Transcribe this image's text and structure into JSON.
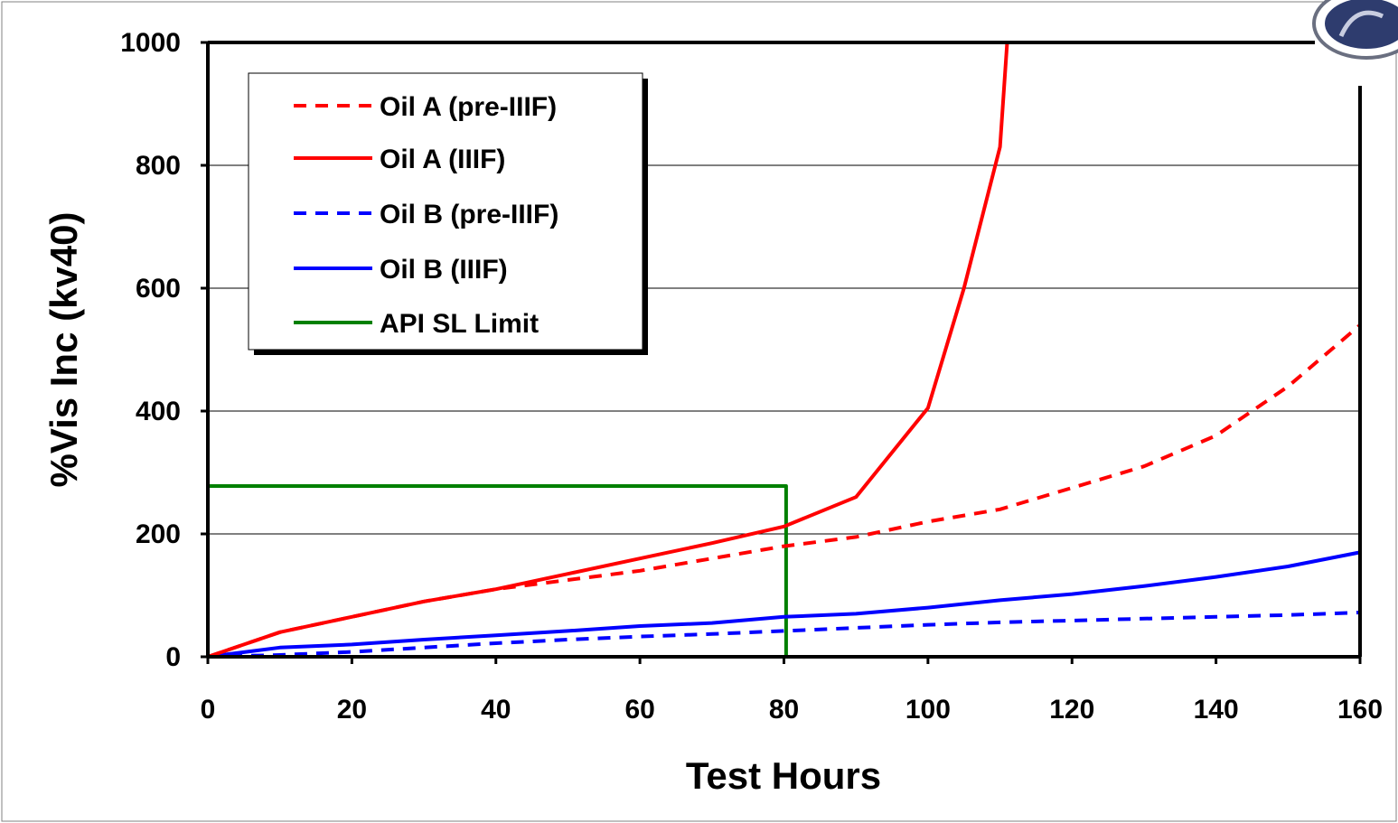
{
  "chart_data": {
    "type": "line",
    "xlabel": "Test Hours",
    "ylabel": "%Vis Inc (kv40)",
    "xlim": [
      0,
      160
    ],
    "ylim": [
      0,
      1000
    ],
    "x_ticks": [
      "0",
      "20",
      "40",
      "60",
      "80",
      "100",
      "120",
      "140",
      "160"
    ],
    "y_ticks": [
      "0",
      "200",
      "400",
      "600",
      "800",
      "1000"
    ],
    "grid": "horizontal",
    "legend_position": "top-left",
    "series": [
      {
        "name": "Oil A (pre-IIIF)",
        "color": "#ff0000",
        "style": "dashed",
        "points": [
          [
            0,
            0
          ],
          [
            10,
            40
          ],
          [
            20,
            65
          ],
          [
            30,
            90
          ],
          [
            40,
            110
          ],
          [
            50,
            125
          ],
          [
            60,
            140
          ],
          [
            70,
            160
          ],
          [
            80,
            180
          ],
          [
            90,
            195
          ],
          [
            100,
            220
          ],
          [
            110,
            240
          ],
          [
            120,
            275
          ],
          [
            130,
            310
          ],
          [
            140,
            360
          ],
          [
            150,
            440
          ],
          [
            160,
            540
          ]
        ]
      },
      {
        "name": "Oil A (IIIF)",
        "color": "#ff0000",
        "style": "solid",
        "points": [
          [
            0,
            0
          ],
          [
            10,
            40
          ],
          [
            20,
            65
          ],
          [
            30,
            90
          ],
          [
            40,
            110
          ],
          [
            50,
            135
          ],
          [
            60,
            160
          ],
          [
            70,
            185
          ],
          [
            80,
            212
          ],
          [
            90,
            260
          ],
          [
            100,
            405
          ],
          [
            105,
            600
          ],
          [
            110,
            830
          ],
          [
            111,
            1000
          ]
        ]
      },
      {
        "name": "Oil B (pre-IIIF)",
        "color": "#0000ff",
        "style": "dashed",
        "points": [
          [
            0,
            0
          ],
          [
            10,
            3
          ],
          [
            20,
            8
          ],
          [
            30,
            15
          ],
          [
            40,
            22
          ],
          [
            50,
            28
          ],
          [
            60,
            33
          ],
          [
            70,
            37
          ],
          [
            80,
            42
          ],
          [
            90,
            47
          ],
          [
            100,
            52
          ],
          [
            110,
            56
          ],
          [
            120,
            59
          ],
          [
            130,
            62
          ],
          [
            140,
            65
          ],
          [
            150,
            68
          ],
          [
            160,
            72
          ]
        ]
      },
      {
        "name": "Oil B (IIIF)",
        "color": "#0000ff",
        "style": "solid",
        "points": [
          [
            0,
            0
          ],
          [
            10,
            15
          ],
          [
            20,
            20
          ],
          [
            30,
            28
          ],
          [
            40,
            35
          ],
          [
            50,
            42
          ],
          [
            60,
            50
          ],
          [
            70,
            55
          ],
          [
            80,
            65
          ],
          [
            90,
            70
          ],
          [
            100,
            80
          ],
          [
            110,
            92
          ],
          [
            120,
            102
          ],
          [
            130,
            115
          ],
          [
            140,
            130
          ],
          [
            150,
            147
          ],
          [
            160,
            170
          ]
        ]
      },
      {
        "name": "API SL Limit",
        "color": "#008000",
        "style": "solid",
        "points": [
          [
            0,
            278
          ],
          [
            80.3,
            278
          ],
          [
            80.3,
            0
          ]
        ]
      }
    ]
  }
}
